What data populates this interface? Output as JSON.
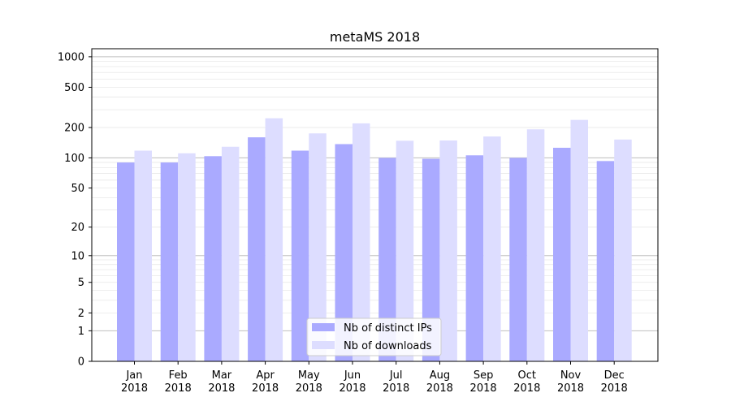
{
  "chart_data": {
    "type": "bar",
    "title": "metaMS 2018",
    "xlabel": "",
    "ylabel": "",
    "y_scale": "symlog",
    "ylim": [
      0,
      1200
    ],
    "y_ticks": [
      0,
      1,
      2,
      5,
      10,
      20,
      50,
      100,
      200,
      500,
      1000
    ],
    "y_tick_labels": [
      "0",
      "1",
      "2",
      "5",
      "10",
      "20",
      "50",
      "100",
      "200",
      "500",
      "1000"
    ],
    "grid": "horizontal",
    "legend_position": "bottom-center",
    "categories": [
      [
        "Jan",
        "2018"
      ],
      [
        "Feb",
        "2018"
      ],
      [
        "Mar",
        "2018"
      ],
      [
        "Apr",
        "2018"
      ],
      [
        "May",
        "2018"
      ],
      [
        "Jun",
        "2018"
      ],
      [
        "Jul",
        "2018"
      ],
      [
        "Aug",
        "2018"
      ],
      [
        "Sep",
        "2018"
      ],
      [
        "Oct",
        "2018"
      ],
      [
        "Nov",
        "2018"
      ],
      [
        "Dec",
        "2018"
      ]
    ],
    "series": [
      {
        "name": "Nb of distinct IPs",
        "color": "#aaaaff",
        "values": [
          90,
          90,
          104,
          160,
          118,
          137,
          100,
          98,
          106,
          100,
          126,
          93
        ]
      },
      {
        "name": "Nb of downloads",
        "color": "#ddddff",
        "values": [
          118,
          111,
          129,
          247,
          175,
          220,
          148,
          149,
          163,
          192,
          238,
          152
        ]
      }
    ]
  }
}
